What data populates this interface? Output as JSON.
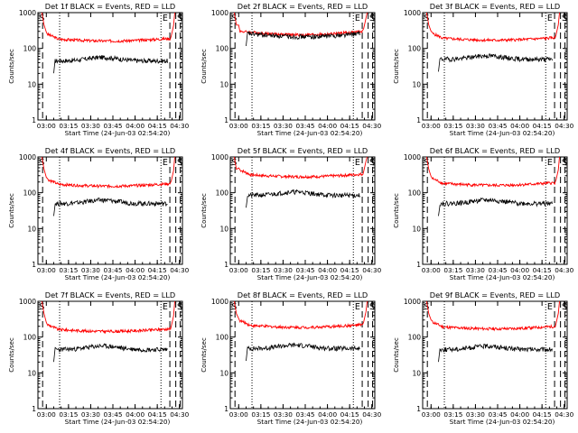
{
  "colors": {
    "events": "#000000",
    "lld": "#ff0000",
    "axis": "#000000"
  },
  "chart_data": [
    {
      "type": "line",
      "title": "Det 1f BLACK = Events, RED = LLD",
      "xlabel": "Start Time (24-Jun-03 02:54:20)",
      "ylabel": "Counts/sec",
      "x_ticks": [
        "03:00",
        "03:15",
        "03:30",
        "03:45",
        "04:00",
        "04:15",
        "04:30"
      ],
      "y_ticks": [
        "1",
        "10",
        "100",
        "1000"
      ],
      "ylim": [
        1,
        1000
      ],
      "y_scale": "log",
      "markers": [
        "S",
        "E",
        "S"
      ],
      "lld_level": 190,
      "events_level": 45,
      "lld_shape": "bowl",
      "events_start": "03:06",
      "events_end": "04:22"
    },
    {
      "type": "line",
      "title": "Det 2f BLACK = Events, RED = LLD",
      "xlabel": "Start Time (24-Jun-03 02:54:20)",
      "ylabel": "Counts/sec",
      "x_ticks": [
        "03:00",
        "03:15",
        "03:30",
        "03:45",
        "04:00",
        "04:15",
        "04:30"
      ],
      "y_ticks": [
        "1",
        "10",
        "100",
        "1000"
      ],
      "ylim": [
        1,
        1000
      ],
      "y_scale": "log",
      "markers": [
        "S",
        "E",
        "S"
      ],
      "lld_level": 300,
      "events_level": 260,
      "lld_shape": "flat",
      "events_start": "03:06",
      "events_end": "04:22"
    },
    {
      "type": "line",
      "title": "Det 3f BLACK = Events, RED = LLD",
      "xlabel": "Start Time (24-Jun-03 02:54:20)",
      "ylabel": "Counts/sec",
      "x_ticks": [
        "03:00",
        "03:15",
        "03:30",
        "03:45",
        "04:00",
        "04:15",
        "04:30"
      ],
      "y_ticks": [
        "1",
        "10",
        "100",
        "1000"
      ],
      "ylim": [
        1,
        1000
      ],
      "y_scale": "log",
      "markers": [
        "S",
        "E",
        "S"
      ],
      "lld_level": 200,
      "events_level": 50,
      "lld_shape": "bowl",
      "events_start": "03:06",
      "events_end": "04:22"
    },
    {
      "type": "line",
      "title": "Det 4f BLACK = Events, RED = LLD",
      "xlabel": "Start Time (24-Jun-03 02:54:20)",
      "ylabel": "Counts/sec",
      "x_ticks": [
        "03:00",
        "03:15",
        "03:30",
        "03:45",
        "04:00",
        "04:15",
        "04:30"
      ],
      "y_ticks": [
        "1",
        "10",
        "100",
        "1000"
      ],
      "ylim": [
        1,
        1000
      ],
      "y_scale": "log",
      "markers": [
        "S",
        "E",
        "S"
      ],
      "lld_level": 180,
      "events_level": 50,
      "lld_shape": "bowl",
      "events_start": "03:06",
      "events_end": "04:22"
    },
    {
      "type": "line",
      "title": "Det 5f BLACK = Events, RED = LLD",
      "xlabel": "Start Time (24-Jun-03 02:54:20)",
      "ylabel": "Counts/sec",
      "x_ticks": [
        "03:00",
        "03:15",
        "03:30",
        "03:45",
        "04:00",
        "04:15",
        "04:30"
      ],
      "y_ticks": [
        "1",
        "10",
        "100",
        "1000"
      ],
      "ylim": [
        1,
        1000
      ],
      "y_scale": "log",
      "markers": [
        "S",
        "E",
        "S"
      ],
      "lld_level": 330,
      "events_level": 85,
      "lld_shape": "bowl",
      "events_start": "03:06",
      "events_end": "04:22"
    },
    {
      "type": "line",
      "title": "Det 6f BLACK = Events, RED = LLD",
      "xlabel": "Start Time (24-Jun-03 02:54:20)",
      "ylabel": "Counts/sec",
      "x_ticks": [
        "03:00",
        "03:15",
        "03:30",
        "03:45",
        "04:00",
        "04:15",
        "04:30"
      ],
      "y_ticks": [
        "1",
        "10",
        "100",
        "1000"
      ],
      "ylim": [
        1,
        1000
      ],
      "y_scale": "log",
      "markers": [
        "S",
        "E",
        "S"
      ],
      "lld_level": 190,
      "events_level": 50,
      "lld_shape": "bowl",
      "events_start": "03:06",
      "events_end": "04:22"
    },
    {
      "type": "line",
      "title": "Det 7f BLACK = Events, RED = LLD",
      "xlabel": "Start Time (24-Jun-03 02:54:20)",
      "ylabel": "Counts/sec",
      "x_ticks": [
        "03:00",
        "03:15",
        "03:30",
        "03:45",
        "04:00",
        "04:15",
        "04:30"
      ],
      "y_ticks": [
        "1",
        "10",
        "100",
        "1000"
      ],
      "ylim": [
        1,
        1000
      ],
      "y_scale": "log",
      "markers": [
        "S",
        "E",
        "S"
      ],
      "lld_level": 170,
      "events_level": 45,
      "lld_shape": "bowl",
      "events_start": "03:06",
      "events_end": "04:22"
    },
    {
      "type": "line",
      "title": "Det 8f BLACK = Events, RED = LLD",
      "xlabel": "Start Time (24-Jun-03 02:54:20)",
      "ylabel": "Counts/sec",
      "x_ticks": [
        "03:00",
        "03:15",
        "03:30",
        "03:45",
        "04:00",
        "04:15",
        "04:30"
      ],
      "y_ticks": [
        "1",
        "10",
        "100",
        "1000"
      ],
      "ylim": [
        1,
        1000
      ],
      "y_scale": "log",
      "markers": [
        "S",
        "E",
        "S"
      ],
      "lld_level": 220,
      "events_level": 48,
      "lld_shape": "bowl",
      "events_start": "03:06",
      "events_end": "04:22"
    },
    {
      "type": "line",
      "title": "Det 9f BLACK = Events, RED = LLD",
      "xlabel": "Start Time (24-Jun-03 02:54:20)",
      "ylabel": "Counts/sec",
      "x_ticks": [
        "03:00",
        "03:15",
        "03:30",
        "03:45",
        "04:00",
        "04:15",
        "04:30"
      ],
      "y_ticks": [
        "1",
        "10",
        "100",
        "1000"
      ],
      "ylim": [
        1,
        1000
      ],
      "y_scale": "log",
      "markers": [
        "S",
        "E",
        "S"
      ],
      "lld_level": 200,
      "events_level": 45,
      "lld_shape": "bowl",
      "events_start": "03:06",
      "events_end": "04:22"
    }
  ]
}
